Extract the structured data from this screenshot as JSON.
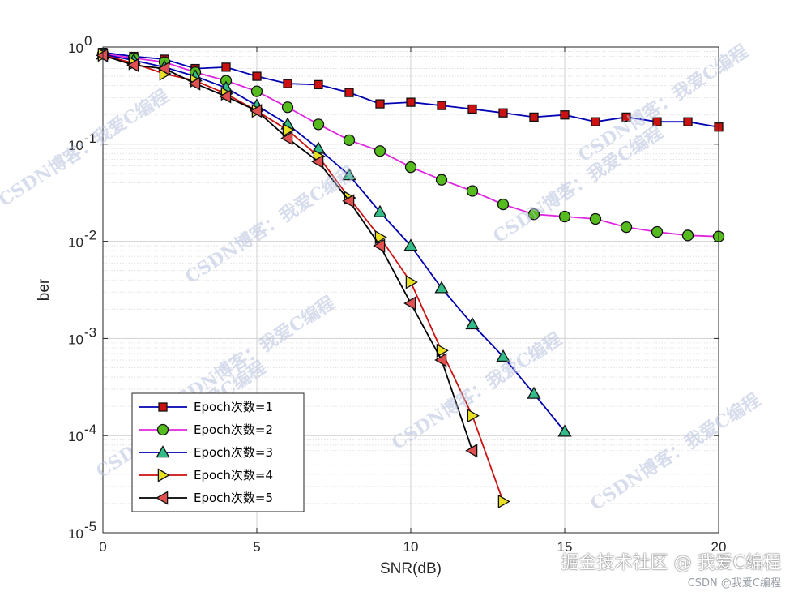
{
  "chart_data": {
    "type": "line",
    "xlabel": "SNR(dB)",
    "ylabel": "ber",
    "xlim": [
      0,
      20
    ],
    "ylim": [
      1e-05,
      1
    ],
    "yscale": "log",
    "xticks": [
      0,
      5,
      10,
      15,
      20
    ],
    "yticks": [
      {
        "base": "10",
        "exp": "-5",
        "value": 1e-05
      },
      {
        "base": "10",
        "exp": "-4",
        "value": 0.0001
      },
      {
        "base": "10",
        "exp": "-3",
        "value": 0.001
      },
      {
        "base": "10",
        "exp": "-2",
        "value": 0.01
      },
      {
        "base": "10",
        "exp": "-1",
        "value": 0.1
      },
      {
        "base": "10",
        "exp": "0",
        "value": 1
      }
    ],
    "grid": true,
    "legend_position": "bottom-left",
    "series": [
      {
        "name": "Epoch次数=1",
        "color": "#0000b3",
        "marker": "square",
        "marker_fill": "#cc1111",
        "x": [
          0,
          1,
          2,
          3,
          4,
          5,
          6,
          7,
          8,
          9,
          10,
          11,
          12,
          13,
          14,
          15,
          16,
          17,
          18,
          19,
          20
        ],
        "y": [
          0.88,
          0.8,
          0.75,
          0.6,
          0.62,
          0.5,
          0.42,
          0.41,
          0.34,
          0.26,
          0.27,
          0.25,
          0.23,
          0.21,
          0.19,
          0.2,
          0.17,
          0.19,
          0.17,
          0.17,
          0.15
        ]
      },
      {
        "name": "Epoch次数=2",
        "color": "#e026e0",
        "marker": "circle",
        "marker_fill": "#55bb1f",
        "x": [
          0,
          1,
          2,
          3,
          4,
          5,
          6,
          7,
          8,
          9,
          10,
          11,
          12,
          13,
          14,
          15,
          16,
          17,
          18,
          19,
          20
        ],
        "y": [
          0.85,
          0.77,
          0.7,
          0.55,
          0.45,
          0.35,
          0.24,
          0.16,
          0.11,
          0.085,
          0.058,
          0.043,
          0.033,
          0.024,
          0.019,
          0.018,
          0.017,
          0.014,
          0.0125,
          0.0115,
          0.0112
        ]
      },
      {
        "name": "Epoch次数=3",
        "color": "#0000b3",
        "marker": "triangle-up",
        "marker_fill": "#33bb88",
        "x": [
          0,
          1,
          2,
          3,
          4,
          5,
          6,
          7,
          8,
          9,
          10,
          11,
          12,
          13,
          14,
          15
        ],
        "y": [
          0.84,
          0.73,
          0.62,
          0.5,
          0.38,
          0.25,
          0.16,
          0.09,
          0.048,
          0.02,
          0.009,
          0.0033,
          0.0014,
          0.00065,
          0.00027,
          0.00011
        ]
      },
      {
        "name": "Epoch次数=4",
        "color": "#cc1111",
        "marker": "triangle-right",
        "marker_fill": "#e8e020",
        "x": [
          0,
          1,
          2,
          3,
          4,
          5,
          6,
          7,
          8,
          9,
          10,
          11,
          12,
          13
        ],
        "y": [
          0.83,
          0.68,
          0.53,
          0.45,
          0.33,
          0.22,
          0.14,
          0.075,
          0.028,
          0.011,
          0.0038,
          0.00075,
          0.00016,
          2.1e-05
        ]
      },
      {
        "name": "Epoch次数=5",
        "color": "#000000",
        "marker": "triangle-left",
        "marker_fill": "#e05050",
        "x": [
          0,
          1,
          2,
          3,
          4,
          5,
          6,
          7,
          8,
          9,
          10,
          11,
          12
        ],
        "y": [
          0.82,
          0.65,
          0.6,
          0.42,
          0.31,
          0.22,
          0.115,
          0.066,
          0.026,
          0.009,
          0.0023,
          0.0006,
          7e-05
        ]
      }
    ]
  },
  "watermarks": {
    "diagonal_text": "CSDN博客：我爱C编程",
    "juejin": "掘金技术社区 @ 我爱C编程",
    "csdn": "CSDN @我爱C编程"
  }
}
